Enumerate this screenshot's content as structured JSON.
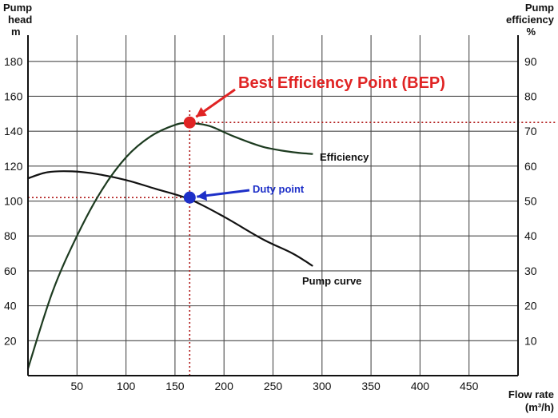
{
  "chart_data": {
    "type": "line",
    "x_axis": {
      "label_line1": "Flow rate",
      "label_line2": "(m³/h)",
      "range": [
        0,
        500
      ],
      "ticks": [
        50,
        100,
        150,
        200,
        250,
        300,
        350,
        400,
        450
      ]
    },
    "y_left": {
      "label_line1": "Pump",
      "label_line2": "head",
      "label_line3": "m",
      "range": [
        0,
        195
      ],
      "ticks": [
        20,
        40,
        60,
        80,
        100,
        120,
        140,
        160,
        180
      ]
    },
    "y_right": {
      "label_line1": "Pump",
      "label_line2": "efficiency",
      "label_line3": "%",
      "range": [
        0,
        97.5
      ],
      "ticks": [
        10,
        20,
        30,
        40,
        50,
        60,
        70,
        80,
        90
      ]
    },
    "grid": true,
    "series": [
      {
        "name": "Pump curve",
        "axis": "left",
        "color": "#111111",
        "x": [
          0,
          20,
          45,
          70,
          100,
          130,
          165,
          200,
          240,
          270,
          290
        ],
        "y": [
          113,
          116.5,
          117,
          115.5,
          112,
          107,
          101,
          91,
          78,
          70,
          63
        ]
      },
      {
        "name": "Efficiency",
        "axis": "right",
        "color": "#1d3b20",
        "x": [
          0,
          25,
          50,
          75,
          100,
          125,
          150,
          165,
          185,
          210,
          240,
          270,
          290
        ],
        "y": [
          2,
          24,
          40,
          53,
          62.5,
          68.5,
          71.8,
          72.3,
          71.5,
          68.5,
          65.5,
          64,
          63.5
        ]
      }
    ],
    "annotations": {
      "bep": {
        "label": "Best Efficiency Point (BEP)",
        "x": 165,
        "y_left": 145,
        "color": "#e02424"
      },
      "duty": {
        "label": "Duty point",
        "x": 165,
        "y_left": 102,
        "color": "#1d2fc8"
      },
      "guide_color": "#b01818"
    }
  }
}
